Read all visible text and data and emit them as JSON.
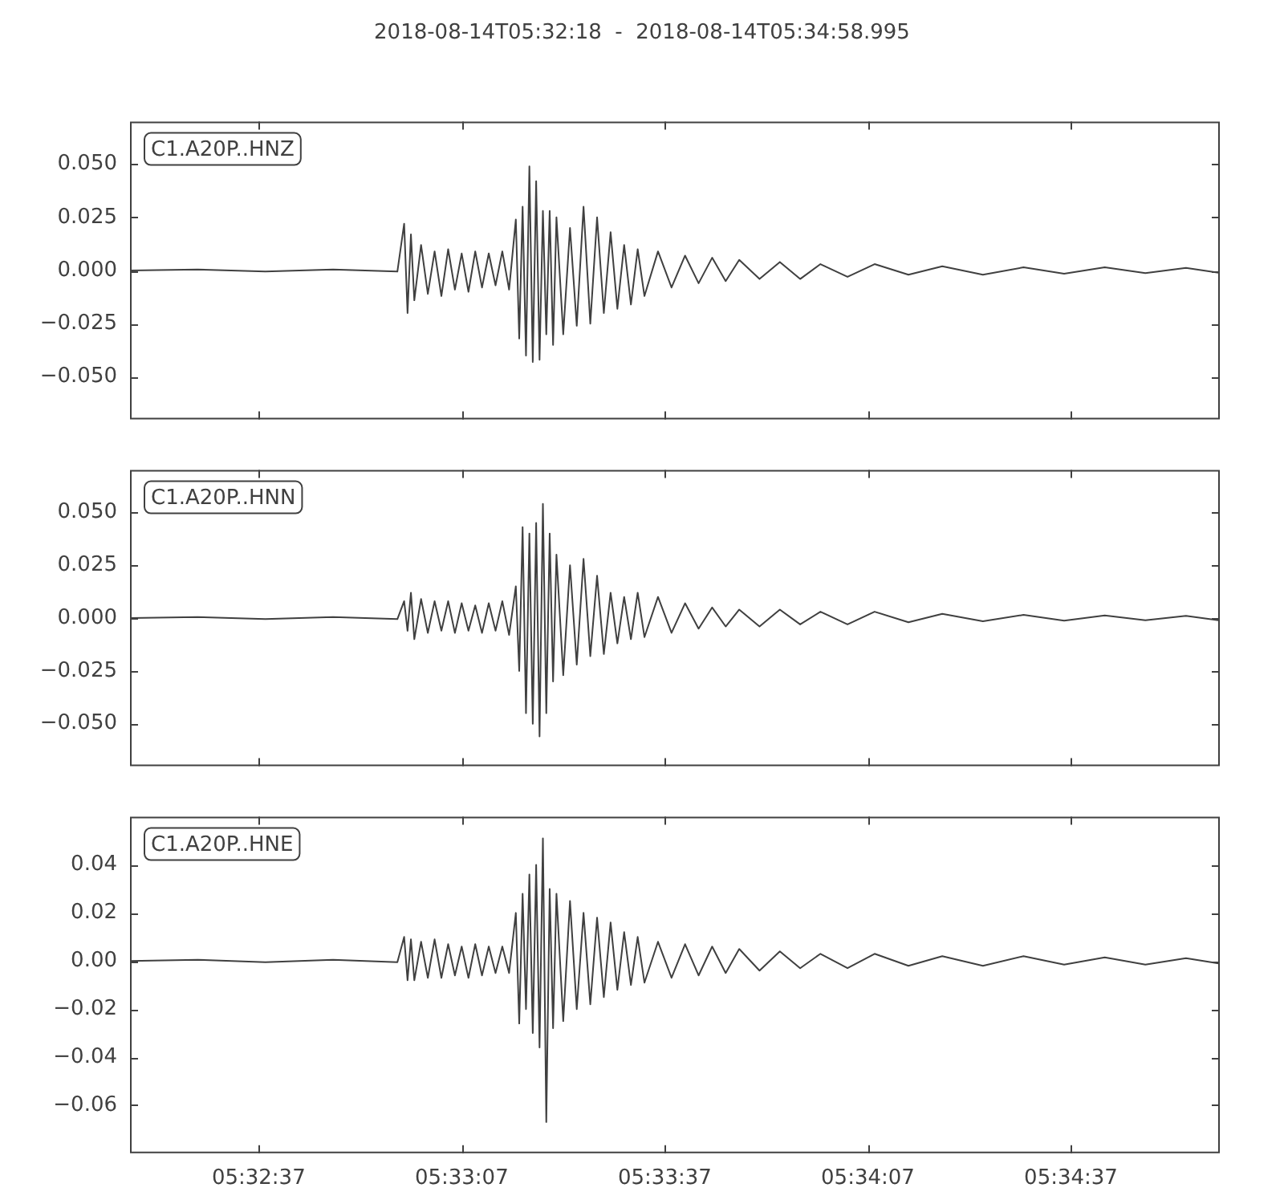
{
  "chart_data": [
    {
      "type": "line",
      "title": "2018-08-14T05:32:18  -  2018-08-14T05:34:58.995",
      "annotations": [
        "C1.A20P..HNZ"
      ],
      "tick_labels": "y",
      "color": "#404040",
      "x": [
        5.538333,
        5.541111,
        5.543889,
        5.546666,
        5.549305,
        5.549583,
        5.549722,
        5.549861,
        5.55,
        5.550277,
        5.550555,
        5.550833,
        5.551111,
        5.551389,
        5.551666,
        5.551944,
        5.552222,
        5.5525,
        5.552777,
        5.553055,
        5.553333,
        5.553611,
        5.553889,
        5.554166,
        5.554305,
        5.554444,
        5.554583,
        5.554722,
        5.554861,
        5.555,
        5.555139,
        5.555277,
        5.555416,
        5.555555,
        5.555694,
        5.555833,
        5.556111,
        5.556389,
        5.556666,
        5.556944,
        5.557222,
        5.5575,
        5.557777,
        5.558055,
        5.558333,
        5.558611,
        5.558889,
        5.559166,
        5.559444,
        5.56,
        5.560555,
        5.561111,
        5.561666,
        5.562222,
        5.562777,
        5.563333,
        5.564166,
        5.565,
        5.565833,
        5.566666,
        5.567777,
        5.568889,
        5.570277,
        5.571666,
        5.573333,
        5.575,
        5.576666,
        5.578333,
        5.58,
        5.581666,
        5.583
      ],
      "values": [
        0,
        0.0005,
        -0.0005,
        0.0005,
        -0.0005,
        0.022,
        -0.02,
        0.017,
        -0.014,
        0.012,
        -0.011,
        0.009,
        -0.012,
        0.01,
        -0.009,
        0.008,
        -0.01,
        0.009,
        -0.008,
        0.008,
        -0.007,
        0.009,
        -0.009,
        0.024,
        -0.032,
        0.03,
        -0.04,
        0.049,
        -0.043,
        0.042,
        -0.042,
        0.028,
        -0.03,
        0.028,
        -0.035,
        0.025,
        -0.03,
        0.02,
        -0.026,
        0.03,
        -0.025,
        0.025,
        -0.02,
        0.018,
        -0.018,
        0.012,
        -0.016,
        0.01,
        -0.012,
        0.009,
        -0.008,
        0.007,
        -0.006,
        0.006,
        -0.005,
        0.005,
        -0.004,
        0.004,
        -0.004,
        0.003,
        -0.003,
        0.003,
        -0.002,
        0.002,
        -0.002,
        0.0015,
        -0.0015,
        0.0015,
        -0.0012,
        0.0012,
        -0.001
      ],
      "xlim": [
        5.538333,
        5.583054
      ],
      "xticks": [
        {
          "value": 5.543611,
          "label": null
        },
        {
          "value": 5.551944,
          "label": null
        },
        {
          "value": 5.560278,
          "label": null
        },
        {
          "value": 5.568611,
          "label": null
        },
        {
          "value": 5.576944,
          "label": null
        }
      ],
      "ylim": [
        -0.07,
        0.07
      ],
      "yticks": [
        {
          "value": -0.05,
          "label": "−0.050"
        },
        {
          "value": -0.025,
          "label": "−0.025"
        },
        {
          "value": 0,
          "label": "0.000"
        },
        {
          "value": 0.025,
          "label": "0.025"
        },
        {
          "value": 0.05,
          "label": "0.050"
        }
      ]
    },
    {
      "type": "line",
      "annotations": [
        "C1.A20P..HNN"
      ],
      "tick_labels": "y",
      "color": "#404040",
      "x": [
        5.538333,
        5.541111,
        5.543889,
        5.546666,
        5.549305,
        5.549583,
        5.549722,
        5.549861,
        5.55,
        5.550277,
        5.550555,
        5.550833,
        5.551111,
        5.551389,
        5.551666,
        5.551944,
        5.552222,
        5.5525,
        5.552777,
        5.553055,
        5.553333,
        5.553611,
        5.553889,
        5.554166,
        5.554305,
        5.554444,
        5.554583,
        5.554722,
        5.554861,
        5.555,
        5.555139,
        5.555277,
        5.555416,
        5.555555,
        5.555694,
        5.555833,
        5.556111,
        5.556389,
        5.556666,
        5.556944,
        5.557222,
        5.5575,
        5.557777,
        5.558055,
        5.558333,
        5.558611,
        5.558889,
        5.559166,
        5.559444,
        5.56,
        5.560555,
        5.561111,
        5.561666,
        5.562222,
        5.562777,
        5.563333,
        5.564166,
        5.565,
        5.565833,
        5.566666,
        5.567777,
        5.568889,
        5.570277,
        5.571666,
        5.573333,
        5.575,
        5.576666,
        5.578333,
        5.58,
        5.581666,
        5.583
      ],
      "values": [
        0,
        0.0005,
        -0.0005,
        0.0005,
        -0.0005,
        0.008,
        -0.006,
        0.012,
        -0.01,
        0.009,
        -0.007,
        0.008,
        -0.006,
        0.008,
        -0.007,
        0.007,
        -0.006,
        0.006,
        -0.007,
        0.007,
        -0.006,
        0.008,
        -0.008,
        0.015,
        -0.025,
        0.043,
        -0.045,
        0.04,
        -0.05,
        0.045,
        -0.056,
        0.054,
        -0.045,
        0.04,
        -0.03,
        0.03,
        -0.027,
        0.025,
        -0.022,
        0.028,
        -0.018,
        0.02,
        -0.017,
        0.012,
        -0.012,
        0.01,
        -0.01,
        0.012,
        -0.009,
        0.01,
        -0.007,
        0.007,
        -0.005,
        0.005,
        -0.004,
        0.004,
        -0.004,
        0.004,
        -0.003,
        0.003,
        -0.003,
        0.003,
        -0.002,
        0.002,
        -0.0015,
        0.0015,
        -0.0012,
        0.0012,
        -0.001,
        0.001,
        -0.001
      ],
      "xlim": [
        5.538333,
        5.583054
      ],
      "xticks": [
        {
          "value": 5.543611,
          "label": null
        },
        {
          "value": 5.551944,
          "label": null
        },
        {
          "value": 5.560278,
          "label": null
        },
        {
          "value": 5.568611,
          "label": null
        },
        {
          "value": 5.576944,
          "label": null
        }
      ],
      "ylim": [
        -0.07,
        0.07
      ],
      "yticks": [
        {
          "value": -0.05,
          "label": "−0.050"
        },
        {
          "value": -0.025,
          "label": "−0.025"
        },
        {
          "value": 0,
          "label": "0.000"
        },
        {
          "value": 0.025,
          "label": "0.025"
        },
        {
          "value": 0.05,
          "label": "0.050"
        }
      ]
    },
    {
      "type": "line",
      "annotations": [
        "C1.A20P..HNE"
      ],
      "color": "#404040",
      "x": [
        5.538333,
        5.541111,
        5.543889,
        5.546666,
        5.549305,
        5.549583,
        5.549722,
        5.549861,
        5.55,
        5.550277,
        5.550555,
        5.550833,
        5.551111,
        5.551389,
        5.551666,
        5.551944,
        5.552222,
        5.5525,
        5.552777,
        5.553055,
        5.553333,
        5.553611,
        5.553889,
        5.554166,
        5.554305,
        5.554444,
        5.554583,
        5.554722,
        5.554861,
        5.555,
        5.555139,
        5.555277,
        5.555416,
        5.555555,
        5.555694,
        5.555833,
        5.556111,
        5.556389,
        5.556666,
        5.556944,
        5.557222,
        5.5575,
        5.557777,
        5.558055,
        5.558333,
        5.558611,
        5.558889,
        5.559166,
        5.559444,
        5.56,
        5.560555,
        5.561111,
        5.561666,
        5.562222,
        5.562777,
        5.563333,
        5.564166,
        5.565,
        5.565833,
        5.566666,
        5.567777,
        5.568889,
        5.570277,
        5.571666,
        5.573333,
        5.575,
        5.576666,
        5.578333,
        5.58,
        5.581666,
        5.583
      ],
      "values": [
        0,
        0.0005,
        -0.0005,
        0.0005,
        -0.0005,
        0.01,
        -0.008,
        0.009,
        -0.008,
        0.008,
        -0.007,
        0.009,
        -0.007,
        0.007,
        -0.006,
        0.006,
        -0.007,
        0.007,
        -0.006,
        0.006,
        -0.005,
        0.006,
        -0.005,
        0.02,
        -0.026,
        0.028,
        -0.02,
        0.036,
        -0.03,
        0.04,
        -0.036,
        0.051,
        -0.067,
        0.03,
        -0.028,
        0.028,
        -0.025,
        0.025,
        -0.02,
        0.02,
        -0.018,
        0.018,
        -0.015,
        0.016,
        -0.012,
        0.012,
        -0.01,
        0.01,
        -0.009,
        0.008,
        -0.007,
        0.007,
        -0.006,
        0.006,
        -0.005,
        0.005,
        -0.004,
        0.004,
        -0.003,
        0.003,
        -0.003,
        0.003,
        -0.002,
        0.002,
        -0.002,
        0.002,
        -0.0015,
        0.0015,
        -0.0015,
        0.0012,
        -0.001
      ],
      "xlim": [
        5.538333,
        5.583054
      ],
      "xticks": [
        {
          "value": 5.543611,
          "label": "05:32:37"
        },
        {
          "value": 5.551944,
          "label": "05:33:07"
        },
        {
          "value": 5.560278,
          "label": "05:33:37"
        },
        {
          "value": 5.568611,
          "label": "05:34:07"
        },
        {
          "value": 5.576944,
          "label": "05:34:37"
        }
      ],
      "ylim": [
        -0.08,
        0.06
      ],
      "yticks": [
        {
          "value": -0.06,
          "label": "−0.06"
        },
        {
          "value": -0.04,
          "label": "−0.04"
        },
        {
          "value": -0.02,
          "label": "−0.02"
        },
        {
          "value": 0,
          "label": "0.00"
        },
        {
          "value": 0.02,
          "label": "0.02"
        },
        {
          "value": 0.04,
          "label": "0.04"
        }
      ]
    }
  ]
}
